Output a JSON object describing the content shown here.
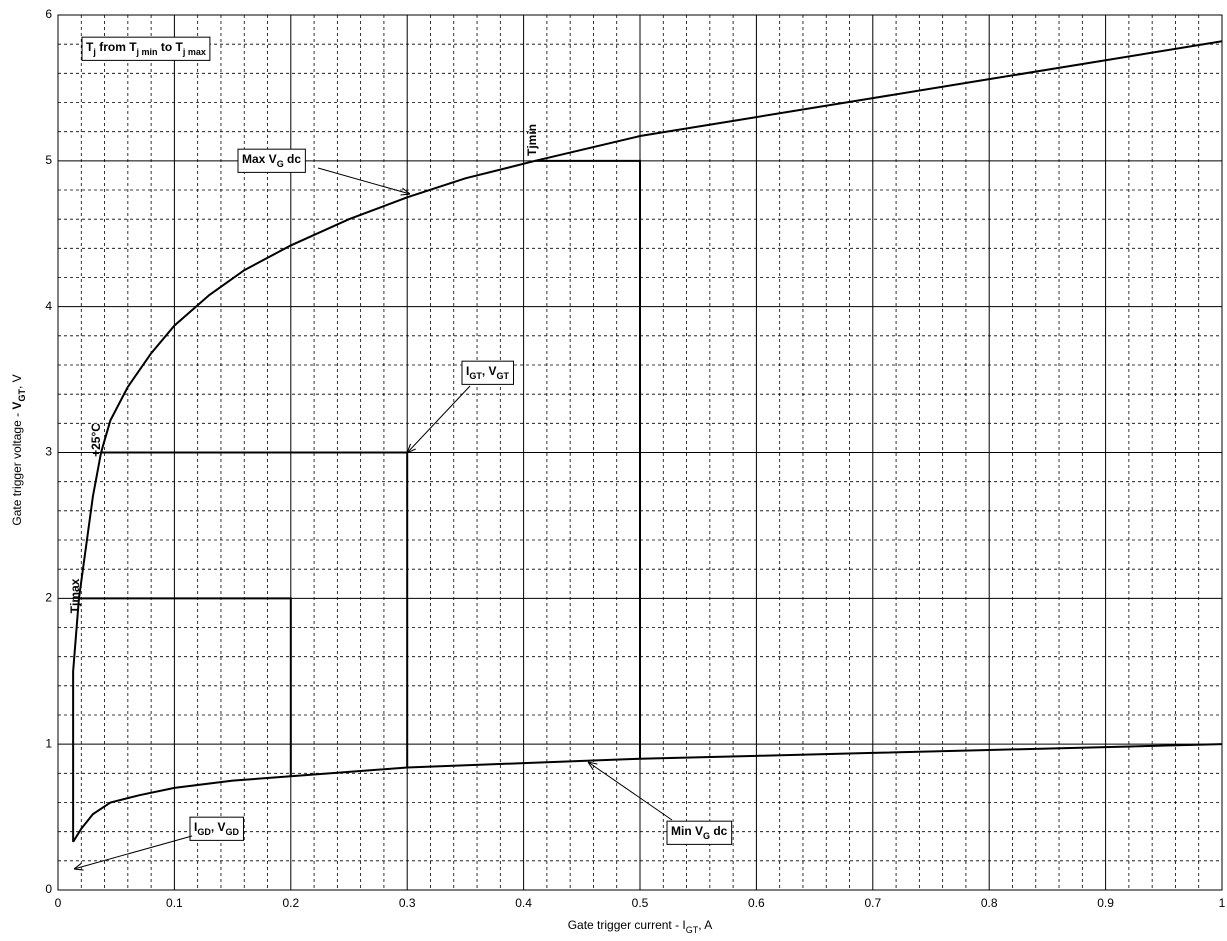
{
  "chart_data": {
    "type": "line",
    "xlabel": [
      {
        "t": "Gate trigger current - "
      },
      {
        "t": "I"
      },
      {
        "t": "GT",
        "sub": true
      },
      {
        "t": ", A"
      }
    ],
    "ylabel": [
      {
        "t": "Gate trigger voltage - "
      },
      {
        "t": "V",
        "bold": true
      },
      {
        "t": "GT",
        "sub": true,
        "bold": true
      },
      {
        "t": ", V"
      }
    ],
    "xlim": [
      0,
      1
    ],
    "ylim": [
      0,
      6
    ],
    "xticks": [
      0,
      0.1,
      0.2,
      0.3,
      0.4,
      0.5,
      0.6,
      0.7,
      0.8,
      0.9,
      1
    ],
    "yticks": [
      0,
      1,
      2,
      3,
      4,
      5,
      6
    ],
    "grid": true,
    "minor_grid": true,
    "series": [
      {
        "color": "#000000",
        "x": [
          0.013,
          0.013,
          0.018,
          0.03,
          0.037,
          0.045,
          0.06,
          0.08,
          0.1,
          0.13,
          0.16,
          0.2,
          0.25,
          0.3,
          0.35,
          0.41,
          0.5,
          0.6,
          0.7,
          0.8,
          0.9,
          1.0
        ],
        "values": [
          0.33,
          1.5,
          2.0,
          2.7,
          3.0,
          3.22,
          3.45,
          3.68,
          3.87,
          4.08,
          4.25,
          4.42,
          4.6,
          4.75,
          4.88,
          5.0,
          5.17,
          5.3,
          5.43,
          5.56,
          5.69,
          5.82
        ]
      },
      {
        "color": "#000000",
        "x": [
          0.013,
          0.02,
          0.03,
          0.045,
          0.07,
          0.1,
          0.15,
          0.2,
          0.3,
          0.4,
          0.5,
          0.6,
          0.7,
          0.8,
          0.9,
          1.0
        ],
        "values": [
          0.33,
          0.42,
          0.52,
          0.6,
          0.65,
          0.7,
          0.75,
          0.78,
          0.84,
          0.87,
          0.9,
          0.92,
          0.94,
          0.96,
          0.98,
          1.0
        ]
      },
      {
        "color": "#000000",
        "x": [
          0.018,
          0.2,
          0.2
        ],
        "values": [
          2,
          2,
          0.78
        ]
      },
      {
        "color": "#000000",
        "x": [
          0.037,
          0.3,
          0.3
        ],
        "values": [
          3,
          3,
          0.84
        ]
      },
      {
        "color": "#000000",
        "x": [
          0.41,
          0.5,
          0.5
        ],
        "values": [
          5,
          5,
          0.9
        ]
      }
    ],
    "annotations": [
      [
        {
          "t": "T"
        },
        {
          "t": "j",
          "sub": true
        },
        {
          "t": " from T"
        },
        {
          "t": "j min",
          "sub": true
        },
        {
          "t": " to T"
        },
        {
          "t": "j max",
          "sub": true
        }
      ],
      [
        {
          "t": "Max V"
        },
        {
          "t": "G",
          "sub": true
        },
        {
          "t": " dc"
        }
      ],
      [
        {
          "t": "I"
        },
        {
          "t": "GT",
          "sub": true
        },
        {
          "t": ", V"
        },
        {
          "t": "GT",
          "sub": true
        }
      ],
      [
        {
          "t": "I"
        },
        {
          "t": "GD",
          "sub": true
        },
        {
          "t": ", V"
        },
        {
          "t": "GD",
          "sub": true
        }
      ],
      [
        {
          "t": "Min V"
        },
        {
          "t": "G",
          "sub": true
        },
        {
          "t": " dc"
        }
      ],
      [
        {
          "t": "Tjmin"
        }
      ],
      [
        {
          "t": "+25°C"
        }
      ],
      [
        {
          "t": "Tjmax"
        }
      ]
    ]
  }
}
